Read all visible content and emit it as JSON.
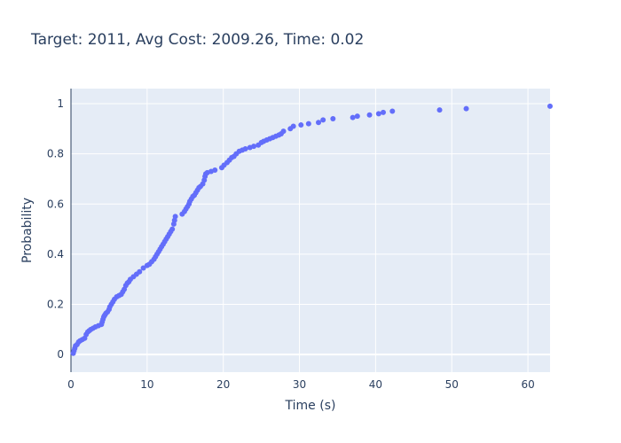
{
  "chart_data": {
    "type": "scatter",
    "title": "Target: 2011, Avg Cost: 2009.26, Time: 0.02",
    "xlabel": "Time (s)",
    "ylabel": "Probability",
    "xlim": [
      0,
      62.9
    ],
    "ylim": [
      -0.07,
      1.06
    ],
    "xticks": [
      0,
      10,
      20,
      30,
      40,
      50,
      60
    ],
    "yticks": [
      0,
      0.2,
      0.4,
      0.6,
      0.8,
      1
    ],
    "grid": true,
    "legend": "none",
    "colors": {
      "marker": "#636efa",
      "plot_bg": "#e5ecf6",
      "grid": "#ffffff",
      "text": "#2a3f5f"
    },
    "series": [
      {
        "x": [
          0.3,
          0.4,
          0.5,
          0.6,
          0.8,
          1.0,
          1.2,
          1.5,
          1.8,
          2.0,
          2.2,
          2.4,
          2.6,
          2.9,
          3.2,
          3.6,
          4.0,
          4.1,
          4.2,
          4.3,
          4.4,
          4.5,
          4.6,
          4.8,
          5.0,
          5.1,
          5.3,
          5.5,
          5.7,
          6.0,
          6.3,
          6.6,
          6.8,
          7.0,
          7.2,
          7.4,
          7.6,
          7.8,
          8.2,
          8.6,
          9.0,
          9.5,
          10.0,
          10.3,
          10.6,
          10.9,
          11.1,
          11.3,
          11.5,
          11.7,
          11.9,
          12.1,
          12.3,
          12.5,
          12.7,
          12.9,
          13.1,
          13.3,
          13.5,
          13.6,
          13.7,
          14.6,
          14.9,
          15.1,
          15.3,
          15.5,
          15.6,
          15.8,
          16.0,
          16.2,
          16.4,
          16.6,
          16.8,
          17.0,
          17.3,
          17.5,
          17.6,
          17.7,
          17.9,
          18.4,
          18.9,
          19.8,
          20.1,
          20.5,
          20.8,
          21.1,
          21.4,
          21.7,
          22.1,
          22.5,
          22.9,
          23.5,
          24.0,
          24.6,
          25.0,
          25.3,
          25.7,
          26.1,
          26.5,
          26.9,
          27.3,
          27.6,
          27.9,
          28.8,
          29.2,
          30.2,
          31.2,
          32.5,
          33.1,
          34.4,
          37.0,
          37.6,
          39.2,
          40.4,
          41.0,
          42.2,
          48.4,
          51.9,
          62.9
        ],
        "y": [
          0.005,
          0.015,
          0.025,
          0.035,
          0.04,
          0.05,
          0.055,
          0.06,
          0.065,
          0.08,
          0.09,
          0.095,
          0.1,
          0.105,
          0.11,
          0.115,
          0.12,
          0.13,
          0.14,
          0.15,
          0.155,
          0.16,
          0.165,
          0.17,
          0.18,
          0.19,
          0.2,
          0.21,
          0.22,
          0.23,
          0.235,
          0.24,
          0.25,
          0.26,
          0.275,
          0.285,
          0.29,
          0.3,
          0.31,
          0.32,
          0.33,
          0.345,
          0.355,
          0.36,
          0.37,
          0.38,
          0.39,
          0.4,
          0.41,
          0.42,
          0.43,
          0.44,
          0.45,
          0.46,
          0.47,
          0.48,
          0.49,
          0.5,
          0.52,
          0.535,
          0.55,
          0.56,
          0.57,
          0.58,
          0.59,
          0.6,
          0.61,
          0.62,
          0.63,
          0.635,
          0.645,
          0.655,
          0.665,
          0.67,
          0.68,
          0.695,
          0.71,
          0.72,
          0.725,
          0.73,
          0.735,
          0.745,
          0.755,
          0.765,
          0.775,
          0.785,
          0.79,
          0.8,
          0.81,
          0.815,
          0.82,
          0.825,
          0.83,
          0.835,
          0.845,
          0.85,
          0.855,
          0.86,
          0.865,
          0.87,
          0.875,
          0.88,
          0.89,
          0.9,
          0.91,
          0.915,
          0.92,
          0.925,
          0.935,
          0.94,
          0.945,
          0.95,
          0.955,
          0.96,
          0.965,
          0.97,
          0.975,
          0.98,
          0.99
        ]
      }
    ]
  }
}
